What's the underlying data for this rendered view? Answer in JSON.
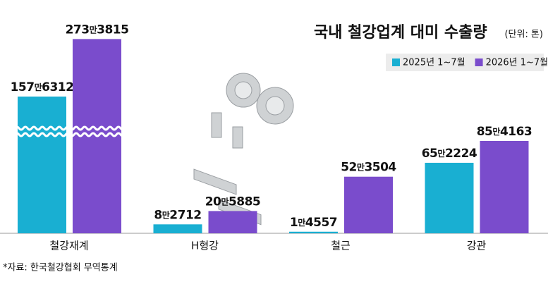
{
  "chart_data": {
    "type": "bar",
    "title": "국내 철강업계 대미 수출량",
    "unit": "(단위: 톤)",
    "source": "*자료: 한국철강협회 무역통계",
    "categories": [
      "철강재계",
      "H형강",
      "철근",
      "강관"
    ],
    "series": [
      {
        "name": "2025년 1~7월",
        "color": "#19afd2",
        "values": [
          1576312,
          82712,
          14557,
          652224
        ],
        "value_labels": [
          "157만6312",
          "8만2712",
          "1만4557",
          "65만2224"
        ]
      },
      {
        "name": "2026년 1~7월",
        "color": "#7a4ccc",
        "values": [
          2733815,
          205885,
          523504,
          854163
        ],
        "value_labels": [
          "273만3815",
          "20만5885",
          "52만3504",
          "85만4163"
        ]
      }
    ],
    "legend": "top-right",
    "axis_break": true
  }
}
